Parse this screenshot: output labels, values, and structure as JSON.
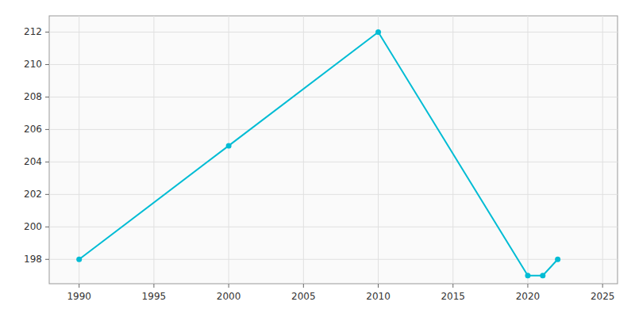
{
  "chart_data": {
    "type": "line",
    "x": [
      1990,
      2000,
      2010,
      2020,
      2021,
      2022
    ],
    "values": [
      198,
      205,
      212,
      197,
      197,
      198
    ],
    "color": "#00bcd4",
    "marker": "circle",
    "xlim": [
      1988,
      2026
    ],
    "ylim": [
      196.5,
      213.0
    ],
    "xticks": [
      1990,
      1995,
      2000,
      2005,
      2010,
      2015,
      2020,
      2025
    ],
    "yticks": [
      198,
      200,
      202,
      204,
      206,
      208,
      210,
      212
    ],
    "grid": true
  }
}
